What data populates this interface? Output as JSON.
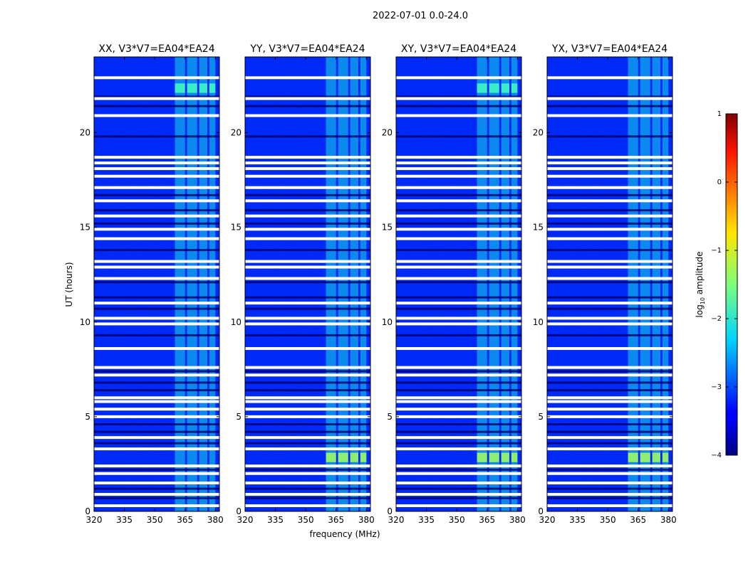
{
  "figure": {
    "suptitle": "2022-07-01 0.0-24.0",
    "xlabel": "frequency (MHz)",
    "ylabel": "UT (hours)"
  },
  "colorbar": {
    "label_prefix": "log",
    "label_sub": "10",
    "label_suffix": " amplitude",
    "min": -4,
    "max": 1,
    "ticks": [
      "1",
      "0",
      "−1",
      "−2",
      "−3",
      "−4"
    ],
    "tick_values": [
      1,
      0,
      -1,
      -2,
      -3,
      -4
    ],
    "colormap": "jet"
  },
  "chart_data": {
    "type": "heatmap",
    "x_range": [
      320,
      382
    ],
    "y_range": [
      0,
      24
    ],
    "x_ticks": [
      320,
      335,
      350,
      365,
      380
    ],
    "y_ticks": [
      0,
      5,
      10,
      15,
      20
    ],
    "x_tick_labels": [
      "320",
      "335",
      "350",
      "365",
      "380"
    ],
    "y_tick_labels": [
      "0",
      "5",
      "10",
      "15",
      "20"
    ],
    "panels": [
      {
        "title": "XX, V3*V7=EA04*EA24"
      },
      {
        "title": "YY, V3*V7=EA04*EA24"
      },
      {
        "title": "XY, V3*V7=EA04*EA24"
      },
      {
        "title": "YX, V3*V7=EA04*EA24"
      }
    ],
    "background_level": -3.2,
    "emission_band_mhz": [
      360,
      380
    ],
    "emission_level": -2.0,
    "emission_subbands_mhz": [
      [
        360,
        365
      ],
      [
        366,
        371
      ],
      [
        372,
        376
      ],
      [
        377,
        380
      ]
    ],
    "bright_events": [
      {
        "ut": [
          2.6,
          3.1
        ],
        "level": -1.3,
        "panels": [
          "YY",
          "XY",
          "YX"
        ]
      },
      {
        "ut": [
          22.1,
          22.6
        ],
        "level": -1.8,
        "panels": [
          "XX",
          "XY"
        ]
      }
    ],
    "flagged_ut_hours": [
      0.3,
      0.9,
      1.5,
      2.0,
      2.4,
      3.3,
      3.9,
      5.0,
      5.4,
      5.8,
      6.0,
      7.2,
      7.6,
      8.6,
      9.9,
      10.2,
      11.0,
      12.3,
      12.9,
      13.2,
      14.4,
      14.9,
      15.6,
      16.4,
      17.1,
      17.7,
      18.1,
      18.4,
      18.7,
      20.9,
      21.8,
      22.9
    ],
    "dark_ut_hours": [
      0.7,
      1.2,
      2.2,
      3.6,
      4.2,
      4.6,
      6.4,
      6.8,
      7.4,
      9.3,
      10.7,
      11.3,
      12.1,
      13.8,
      15.2,
      15.9,
      16.7,
      19.8,
      21.4,
      21.9
    ]
  }
}
